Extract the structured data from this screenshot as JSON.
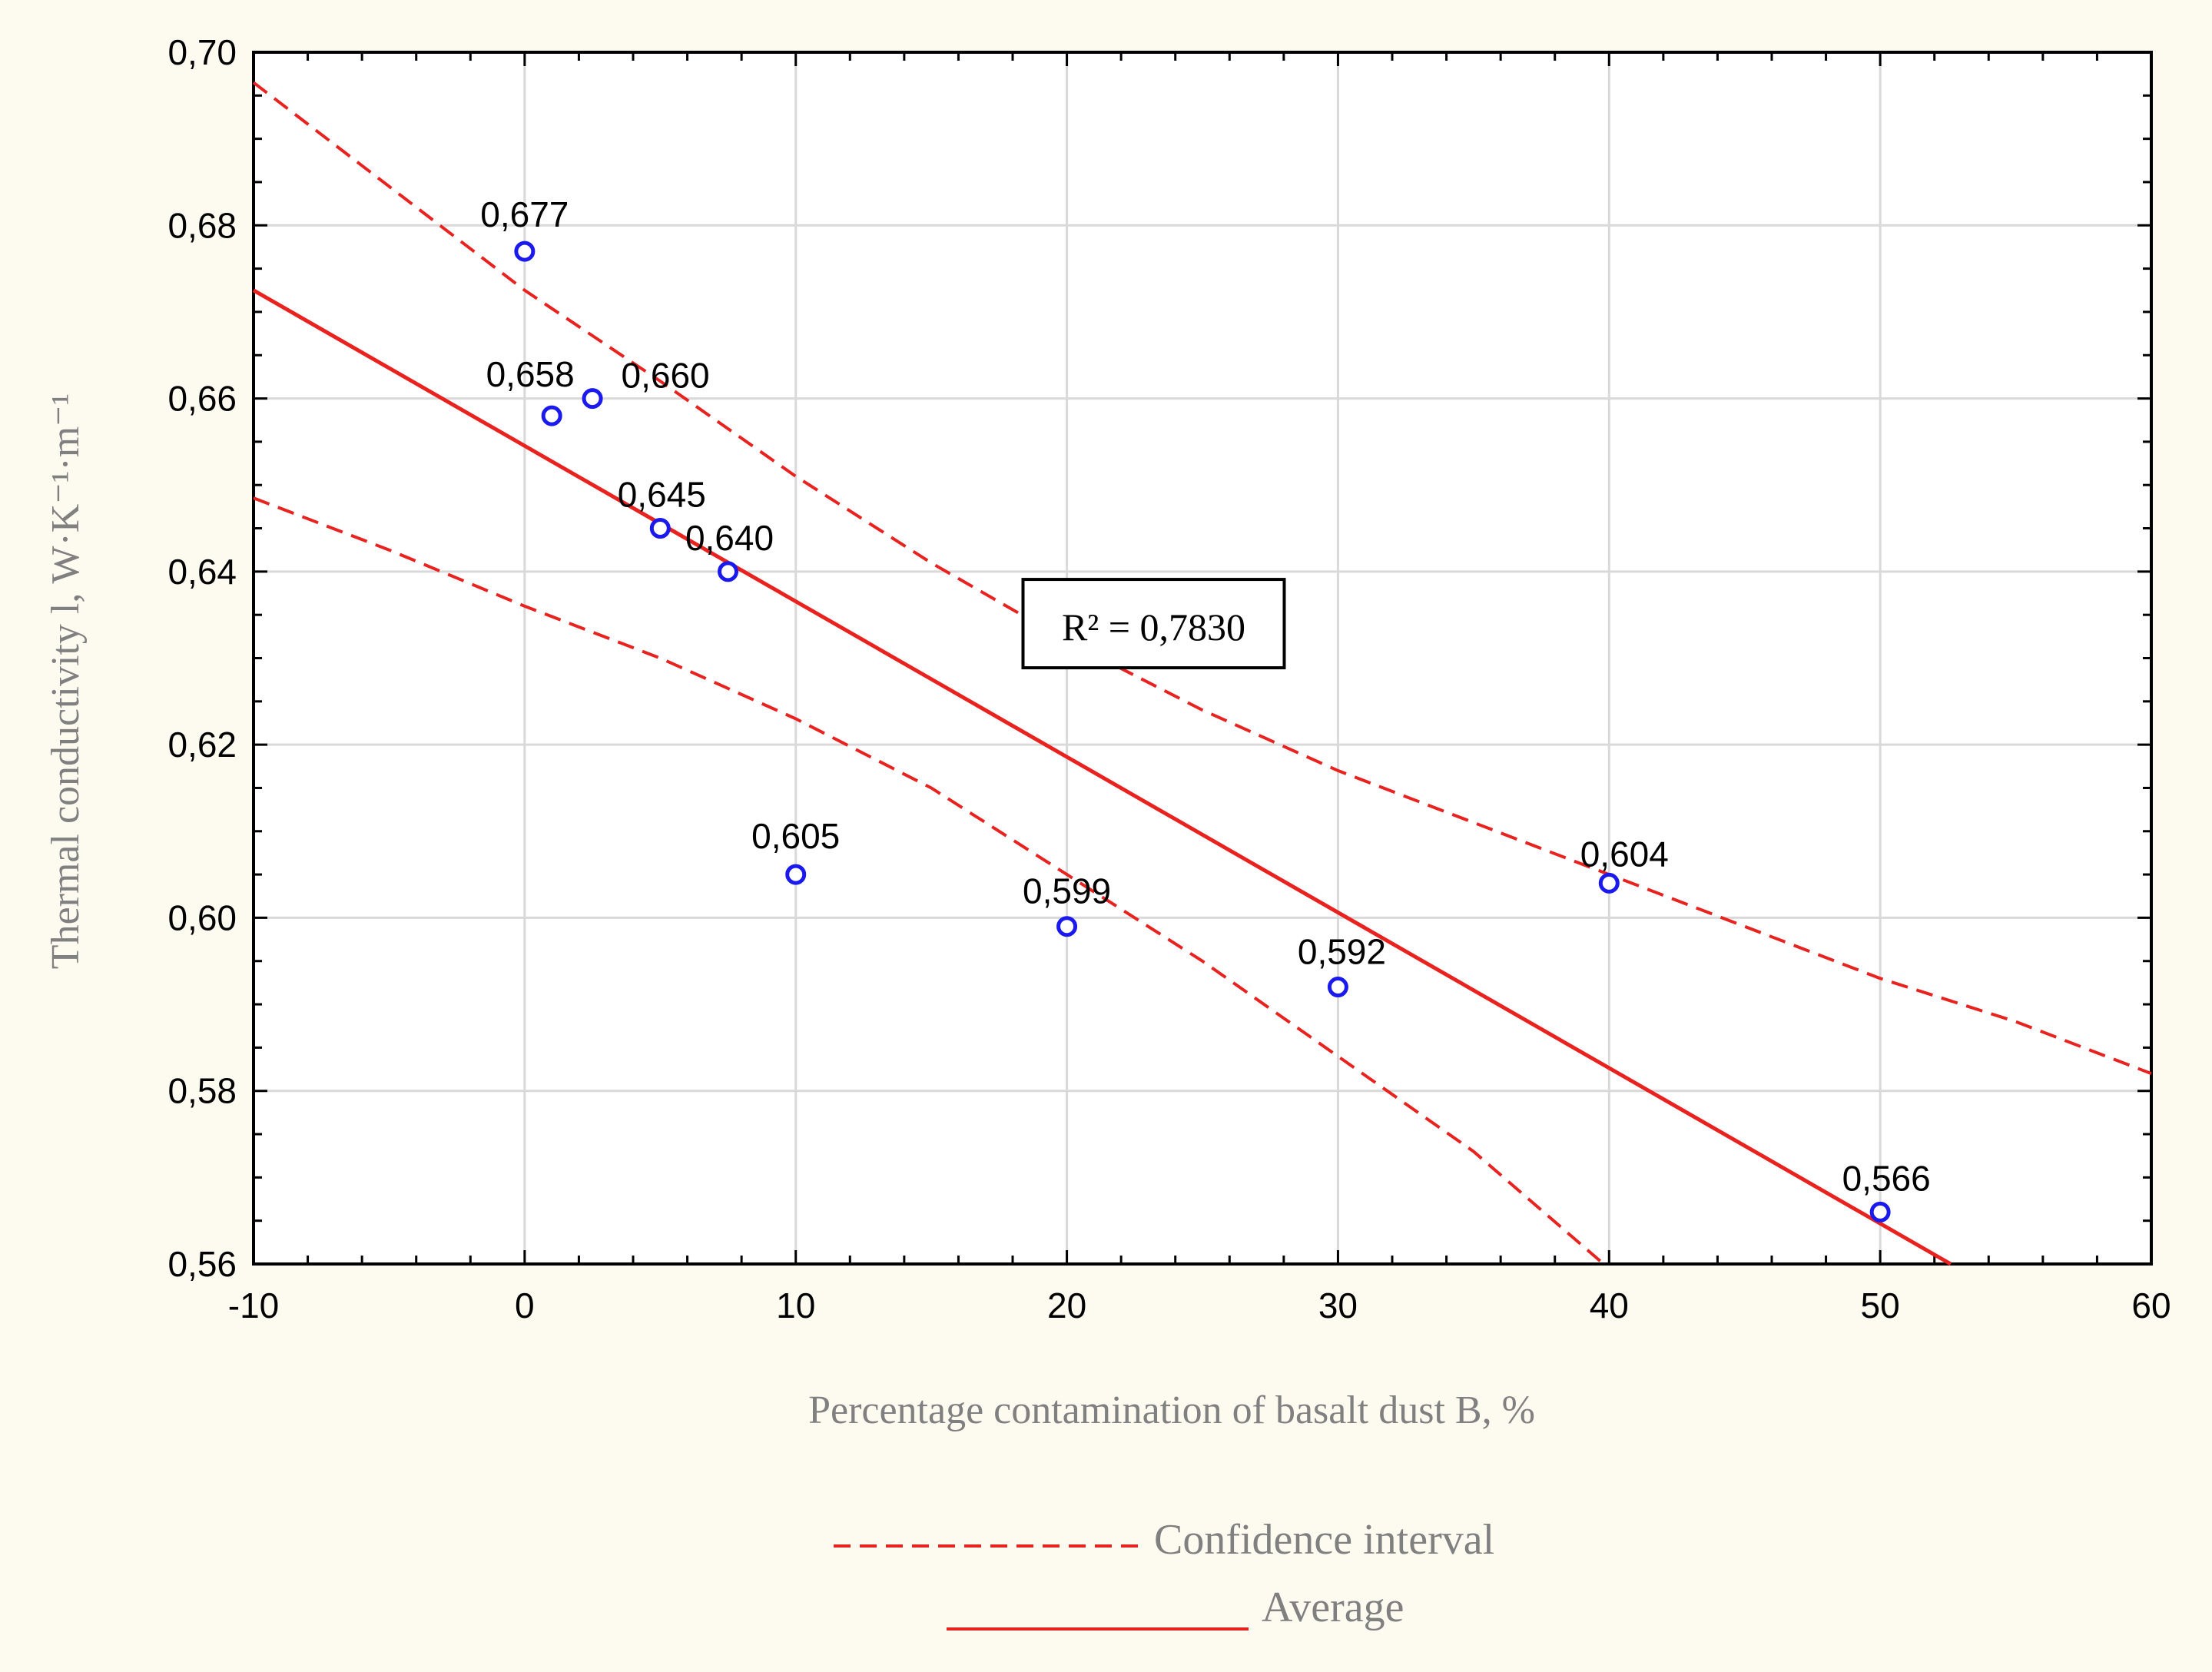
{
  "colors": {
    "background": "#fdfaf0",
    "plot_bg": "#ffffff",
    "line": "#e8231f",
    "points": "#1a1aee",
    "grid": "#d9d9d9",
    "text_muted": "#808080"
  },
  "chart_data": {
    "type": "scatter",
    "xlabel": "Percentage contamination of basalt dust B, %",
    "ylabel": "Thermal conductivity l, W·K⁻¹·m⁻¹",
    "xlim": [
      -10,
      60
    ],
    "ylim": [
      0.56,
      0.7
    ],
    "x_ticks": [
      -10,
      0,
      10,
      20,
      30,
      40,
      50,
      60
    ],
    "x_tick_labels": [
      "-10",
      "0",
      "10",
      "20",
      "30",
      "40",
      "50",
      "60"
    ],
    "y_ticks": [
      0.56,
      0.58,
      0.6,
      0.62,
      0.64,
      0.66,
      0.68,
      0.7
    ],
    "y_tick_labels": [
      "0,56",
      "0,58",
      "0,60",
      "0,62",
      "0,64",
      "0,66",
      "0,68",
      "0,70"
    ],
    "grid": true,
    "points": [
      {
        "x": 0,
        "y": 0.677,
        "label": "0,677"
      },
      {
        "x": 1,
        "y": 0.658,
        "label": "0,658"
      },
      {
        "x": 2.5,
        "y": 0.66,
        "label": "0,660"
      },
      {
        "x": 5,
        "y": 0.645,
        "label": "0,645"
      },
      {
        "x": 7.5,
        "y": 0.64,
        "label": "0,640"
      },
      {
        "x": 10,
        "y": 0.605,
        "label": "0,605"
      },
      {
        "x": 20,
        "y": 0.599,
        "label": "0,599"
      },
      {
        "x": 30,
        "y": 0.592,
        "label": "0,592"
      },
      {
        "x": 40,
        "y": 0.604,
        "label": "0,604"
      },
      {
        "x": 50,
        "y": 0.566,
        "label": "0,566"
      }
    ],
    "series": [
      {
        "name": "Average",
        "style": "solid",
        "x": [
          -10,
          52.6
        ],
        "y": [
          0.6725,
          0.56
        ]
      },
      {
        "name": "Confidence interval",
        "style": "dashed",
        "part": "upper",
        "x": [
          -10,
          -5,
          0,
          5,
          10,
          15,
          20,
          25,
          30,
          35,
          40,
          45,
          50,
          55,
          60
        ],
        "y": [
          0.6965,
          0.6845,
          0.6725,
          0.662,
          0.651,
          0.641,
          0.632,
          0.624,
          0.617,
          0.611,
          0.605,
          0.599,
          0.593,
          0.588,
          0.582
        ]
      },
      {
        "name": "Confidence interval",
        "style": "dashed",
        "part": "lower",
        "x": [
          -10,
          -5,
          0,
          5,
          10,
          15,
          20,
          25,
          30,
          35,
          39.8
        ],
        "y": [
          0.6485,
          0.6425,
          0.636,
          0.63,
          0.623,
          0.615,
          0.605,
          0.595,
          0.584,
          0.573,
          0.56
        ]
      }
    ],
    "annotation": {
      "text": "R² = 0,7830",
      "x": 23.2,
      "y": 0.6335
    },
    "legend": {
      "position": "bottom-center",
      "entries": [
        {
          "label": "Confidence interval",
          "style": "dashed"
        },
        {
          "label": "Average",
          "style": "solid"
        }
      ]
    }
  }
}
